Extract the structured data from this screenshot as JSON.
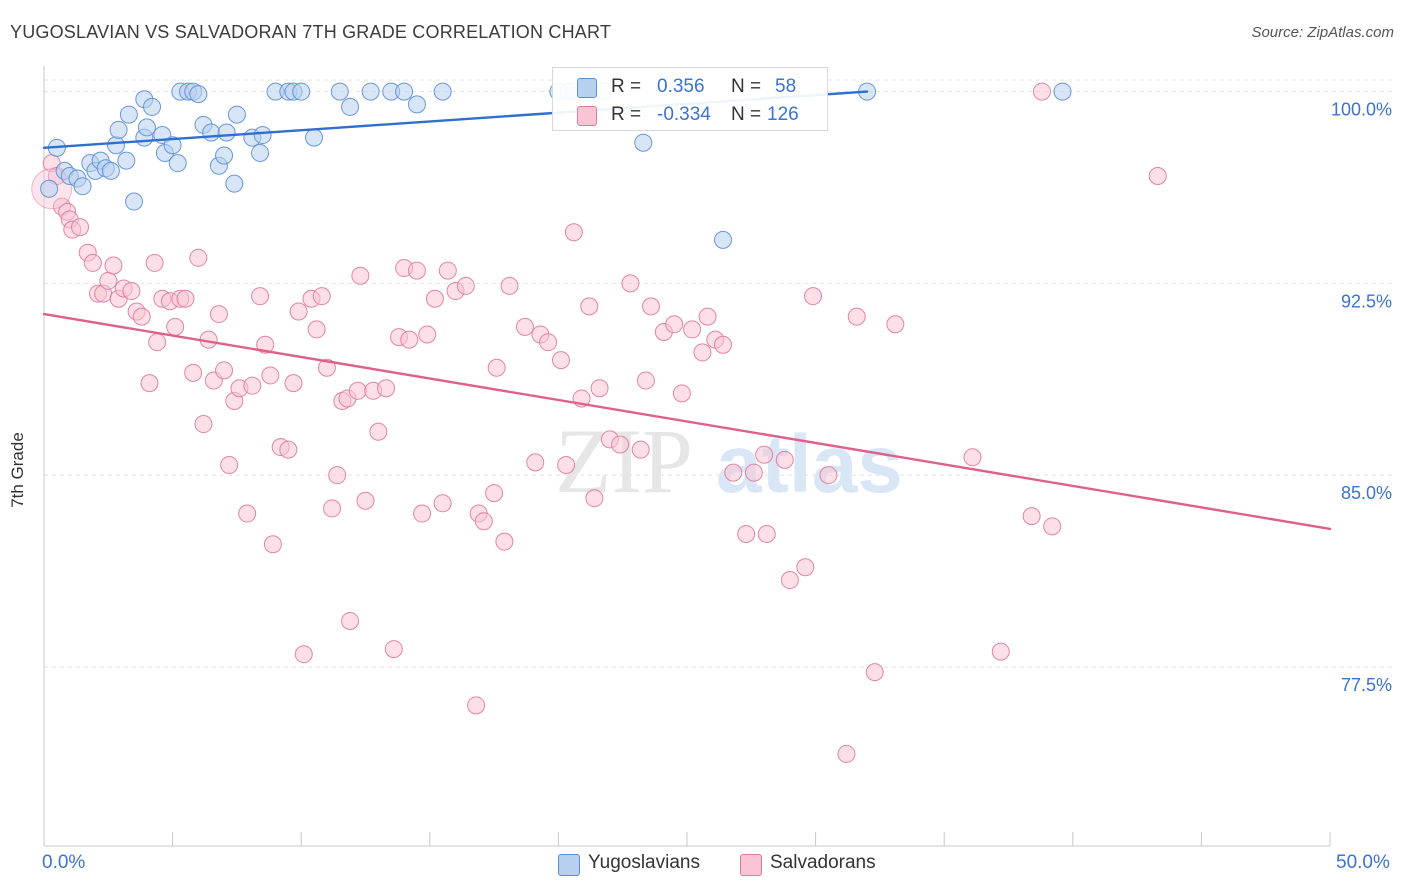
{
  "header": {
    "title": "YUGOSLAVIAN VS SALVADORAN 7TH GRADE CORRELATION CHART",
    "source": "Source: ZipAtlas.com"
  },
  "watermark": {
    "zip": "ZIP",
    "atlas": "atlas"
  },
  "legend": {
    "r_label": "R =",
    "n_label": "N =",
    "rows": [
      {
        "r": "0.356",
        "n": "58"
      },
      {
        "r": "-0.334",
        "n": "126"
      }
    ]
  },
  "x_axis_labels": {
    "min": "0.0%",
    "max": "50.0%"
  },
  "colors": {
    "yugoslavians_fill": "#b8d0f0",
    "yugoslavians_stroke": "#5a8ed6",
    "yugoslavians_line": "#2f6fcf",
    "salvadorans_fill": "#f9c4d4",
    "salvadorans_stroke": "#e07a9c",
    "salvadorans_line": "#e0608c",
    "axis_text": "#3a74cf"
  },
  "chart_data": {
    "type": "scatter",
    "title": "YUGOSLAVIAN VS SALVADORAN 7TH GRADE CORRELATION CHART",
    "xlabel": "",
    "ylabel": "7th Grade",
    "xlim": [
      0,
      50
    ],
    "ylim": [
      70.5,
      101.0
    ],
    "y_ticks": [
      {
        "value": 100.0,
        "label": "100.0%"
      },
      {
        "value": 92.5,
        "label": "92.5%"
      },
      {
        "value": 85.0,
        "label": "85.0%"
      },
      {
        "value": 77.5,
        "label": "77.5%"
      }
    ],
    "grid": true,
    "series": [
      {
        "name": "Yugoslavians",
        "R": 0.356,
        "N": 58,
        "trend": {
          "x": [
            0,
            32.0
          ],
          "y": [
            97.8,
            100.0
          ]
        },
        "points": [
          [
            0.5,
            97.8
          ],
          [
            0.8,
            96.9
          ],
          [
            1.0,
            96.7
          ],
          [
            1.3,
            96.6
          ],
          [
            1.5,
            96.3
          ],
          [
            1.8,
            97.2
          ],
          [
            2.0,
            96.9
          ],
          [
            2.2,
            97.3
          ],
          [
            2.4,
            97.0
          ],
          [
            2.6,
            96.9
          ],
          [
            2.8,
            97.9
          ],
          [
            2.9,
            98.5
          ],
          [
            3.2,
            97.3
          ],
          [
            3.3,
            99.1
          ],
          [
            3.5,
            95.7
          ],
          [
            3.9,
            98.2
          ],
          [
            3.9,
            99.7
          ],
          [
            4.0,
            98.6
          ],
          [
            4.2,
            99.4
          ],
          [
            4.6,
            98.3
          ],
          [
            4.7,
            97.6
          ],
          [
            5.0,
            97.9
          ],
          [
            5.2,
            97.2
          ],
          [
            5.3,
            100.0
          ],
          [
            5.6,
            100.0
          ],
          [
            5.8,
            100.0
          ],
          [
            6.0,
            99.9
          ],
          [
            6.2,
            98.7
          ],
          [
            6.5,
            98.4
          ],
          [
            6.8,
            97.1
          ],
          [
            7.0,
            97.5
          ],
          [
            7.1,
            98.4
          ],
          [
            7.4,
            96.4
          ],
          [
            7.5,
            99.1
          ],
          [
            8.1,
            98.2
          ],
          [
            8.4,
            97.6
          ],
          [
            8.5,
            98.3
          ],
          [
            9.0,
            100.0
          ],
          [
            9.5,
            100.0
          ],
          [
            9.7,
            100.0
          ],
          [
            10.0,
            100.0
          ],
          [
            10.5,
            98.2
          ],
          [
            11.5,
            100.0
          ],
          [
            11.9,
            99.4
          ],
          [
            12.7,
            100.0
          ],
          [
            13.5,
            100.0
          ],
          [
            14.0,
            100.0
          ],
          [
            14.5,
            99.5
          ],
          [
            15.5,
            100.0
          ],
          [
            20.0,
            100.0
          ],
          [
            20.4,
            100.0
          ],
          [
            20.6,
            100.0
          ],
          [
            21.8,
            100.0
          ],
          [
            23.3,
            98.0
          ],
          [
            26.4,
            94.2
          ],
          [
            32.0,
            100.0
          ],
          [
            39.6,
            100.0
          ],
          [
            0.2,
            96.2
          ]
        ]
      },
      {
        "name": "Salvadorans",
        "R": -0.334,
        "N": 126,
        "trend": {
          "x": [
            0,
            50
          ],
          "y": [
            91.3,
            82.9
          ]
        },
        "points": [
          [
            0.3,
            97.2
          ],
          [
            0.5,
            96.7
          ],
          [
            0.7,
            95.5
          ],
          [
            0.9,
            95.3
          ],
          [
            1.0,
            95.0
          ],
          [
            1.1,
            94.6
          ],
          [
            1.4,
            94.7
          ],
          [
            1.7,
            93.7
          ],
          [
            1.9,
            93.3
          ],
          [
            2.1,
            92.1
          ],
          [
            2.3,
            92.1
          ],
          [
            2.5,
            92.6
          ],
          [
            2.7,
            93.2
          ],
          [
            2.9,
            91.9
          ],
          [
            3.1,
            92.3
          ],
          [
            3.4,
            92.2
          ],
          [
            3.6,
            91.4
          ],
          [
            3.8,
            91.2
          ],
          [
            4.1,
            88.6
          ],
          [
            4.3,
            93.3
          ],
          [
            4.4,
            90.2
          ],
          [
            4.6,
            91.9
          ],
          [
            4.9,
            91.8
          ],
          [
            5.1,
            90.8
          ],
          [
            5.3,
            91.9
          ],
          [
            5.5,
            91.9
          ],
          [
            5.8,
            89.0
          ],
          [
            6.0,
            93.5
          ],
          [
            6.2,
            87.0
          ],
          [
            6.4,
            90.3
          ],
          [
            6.6,
            88.7
          ],
          [
            6.8,
            91.3
          ],
          [
            7.0,
            89.1
          ],
          [
            7.2,
            85.4
          ],
          [
            7.4,
            87.9
          ],
          [
            7.6,
            88.4
          ],
          [
            7.9,
            83.5
          ],
          [
            8.1,
            88.5
          ],
          [
            8.4,
            92.0
          ],
          [
            8.6,
            90.1
          ],
          [
            8.8,
            88.9
          ],
          [
            8.9,
            82.3
          ],
          [
            9.2,
            86.1
          ],
          [
            9.5,
            86.0
          ],
          [
            9.7,
            88.6
          ],
          [
            9.9,
            91.4
          ],
          [
            10.1,
            78.0
          ],
          [
            10.4,
            91.9
          ],
          [
            10.6,
            90.7
          ],
          [
            10.8,
            92.0
          ],
          [
            11.0,
            89.2
          ],
          [
            11.2,
            83.7
          ],
          [
            11.4,
            85.0
          ],
          [
            11.6,
            87.9
          ],
          [
            11.8,
            88.0
          ],
          [
            11.9,
            79.3
          ],
          [
            12.2,
            88.3
          ],
          [
            12.3,
            92.8
          ],
          [
            12.5,
            84.0
          ],
          [
            12.8,
            88.3
          ],
          [
            13.0,
            86.7
          ],
          [
            13.3,
            88.4
          ],
          [
            13.6,
            78.2
          ],
          [
            13.8,
            90.4
          ],
          [
            14.0,
            93.1
          ],
          [
            14.2,
            90.3
          ],
          [
            14.5,
            93.0
          ],
          [
            14.7,
            83.5
          ],
          [
            14.9,
            90.5
          ],
          [
            15.2,
            91.9
          ],
          [
            15.5,
            83.9
          ],
          [
            15.7,
            93.0
          ],
          [
            16.0,
            92.2
          ],
          [
            16.4,
            92.4
          ],
          [
            16.8,
            76.0
          ],
          [
            16.9,
            83.5
          ],
          [
            17.1,
            83.2
          ],
          [
            17.5,
            84.3
          ],
          [
            17.6,
            89.2
          ],
          [
            17.9,
            82.4
          ],
          [
            18.1,
            92.4
          ],
          [
            18.7,
            90.8
          ],
          [
            19.1,
            85.5
          ],
          [
            19.3,
            90.5
          ],
          [
            19.6,
            90.2
          ],
          [
            20.1,
            89.5
          ],
          [
            20.3,
            85.4
          ],
          [
            20.6,
            94.5
          ],
          [
            20.9,
            88.0
          ],
          [
            21.2,
            91.6
          ],
          [
            21.4,
            84.1
          ],
          [
            21.6,
            88.4
          ],
          [
            22.0,
            86.4
          ],
          [
            22.4,
            86.2
          ],
          [
            22.8,
            92.5
          ],
          [
            23.2,
            86.0
          ],
          [
            23.4,
            88.7
          ],
          [
            23.6,
            91.6
          ],
          [
            24.1,
            90.6
          ],
          [
            24.5,
            90.9
          ],
          [
            24.8,
            88.2
          ],
          [
            25.2,
            90.7
          ],
          [
            25.6,
            89.8
          ],
          [
            25.8,
            91.2
          ],
          [
            26.1,
            90.3
          ],
          [
            26.4,
            90.1
          ],
          [
            26.8,
            85.1
          ],
          [
            27.3,
            82.7
          ],
          [
            27.6,
            85.1
          ],
          [
            28.0,
            85.8
          ],
          [
            28.1,
            82.7
          ],
          [
            28.8,
            85.6
          ],
          [
            29.0,
            80.9
          ],
          [
            29.6,
            81.4
          ],
          [
            29.9,
            92.0
          ],
          [
            30.5,
            85.0
          ],
          [
            31.2,
            74.1
          ],
          [
            31.6,
            91.2
          ],
          [
            32.3,
            77.3
          ],
          [
            33.1,
            90.9
          ],
          [
            36.1,
            85.7
          ],
          [
            37.2,
            78.1
          ],
          [
            38.4,
            83.4
          ],
          [
            38.8,
            100.0
          ],
          [
            39.2,
            83.0
          ],
          [
            43.3,
            96.7
          ]
        ]
      }
    ]
  }
}
